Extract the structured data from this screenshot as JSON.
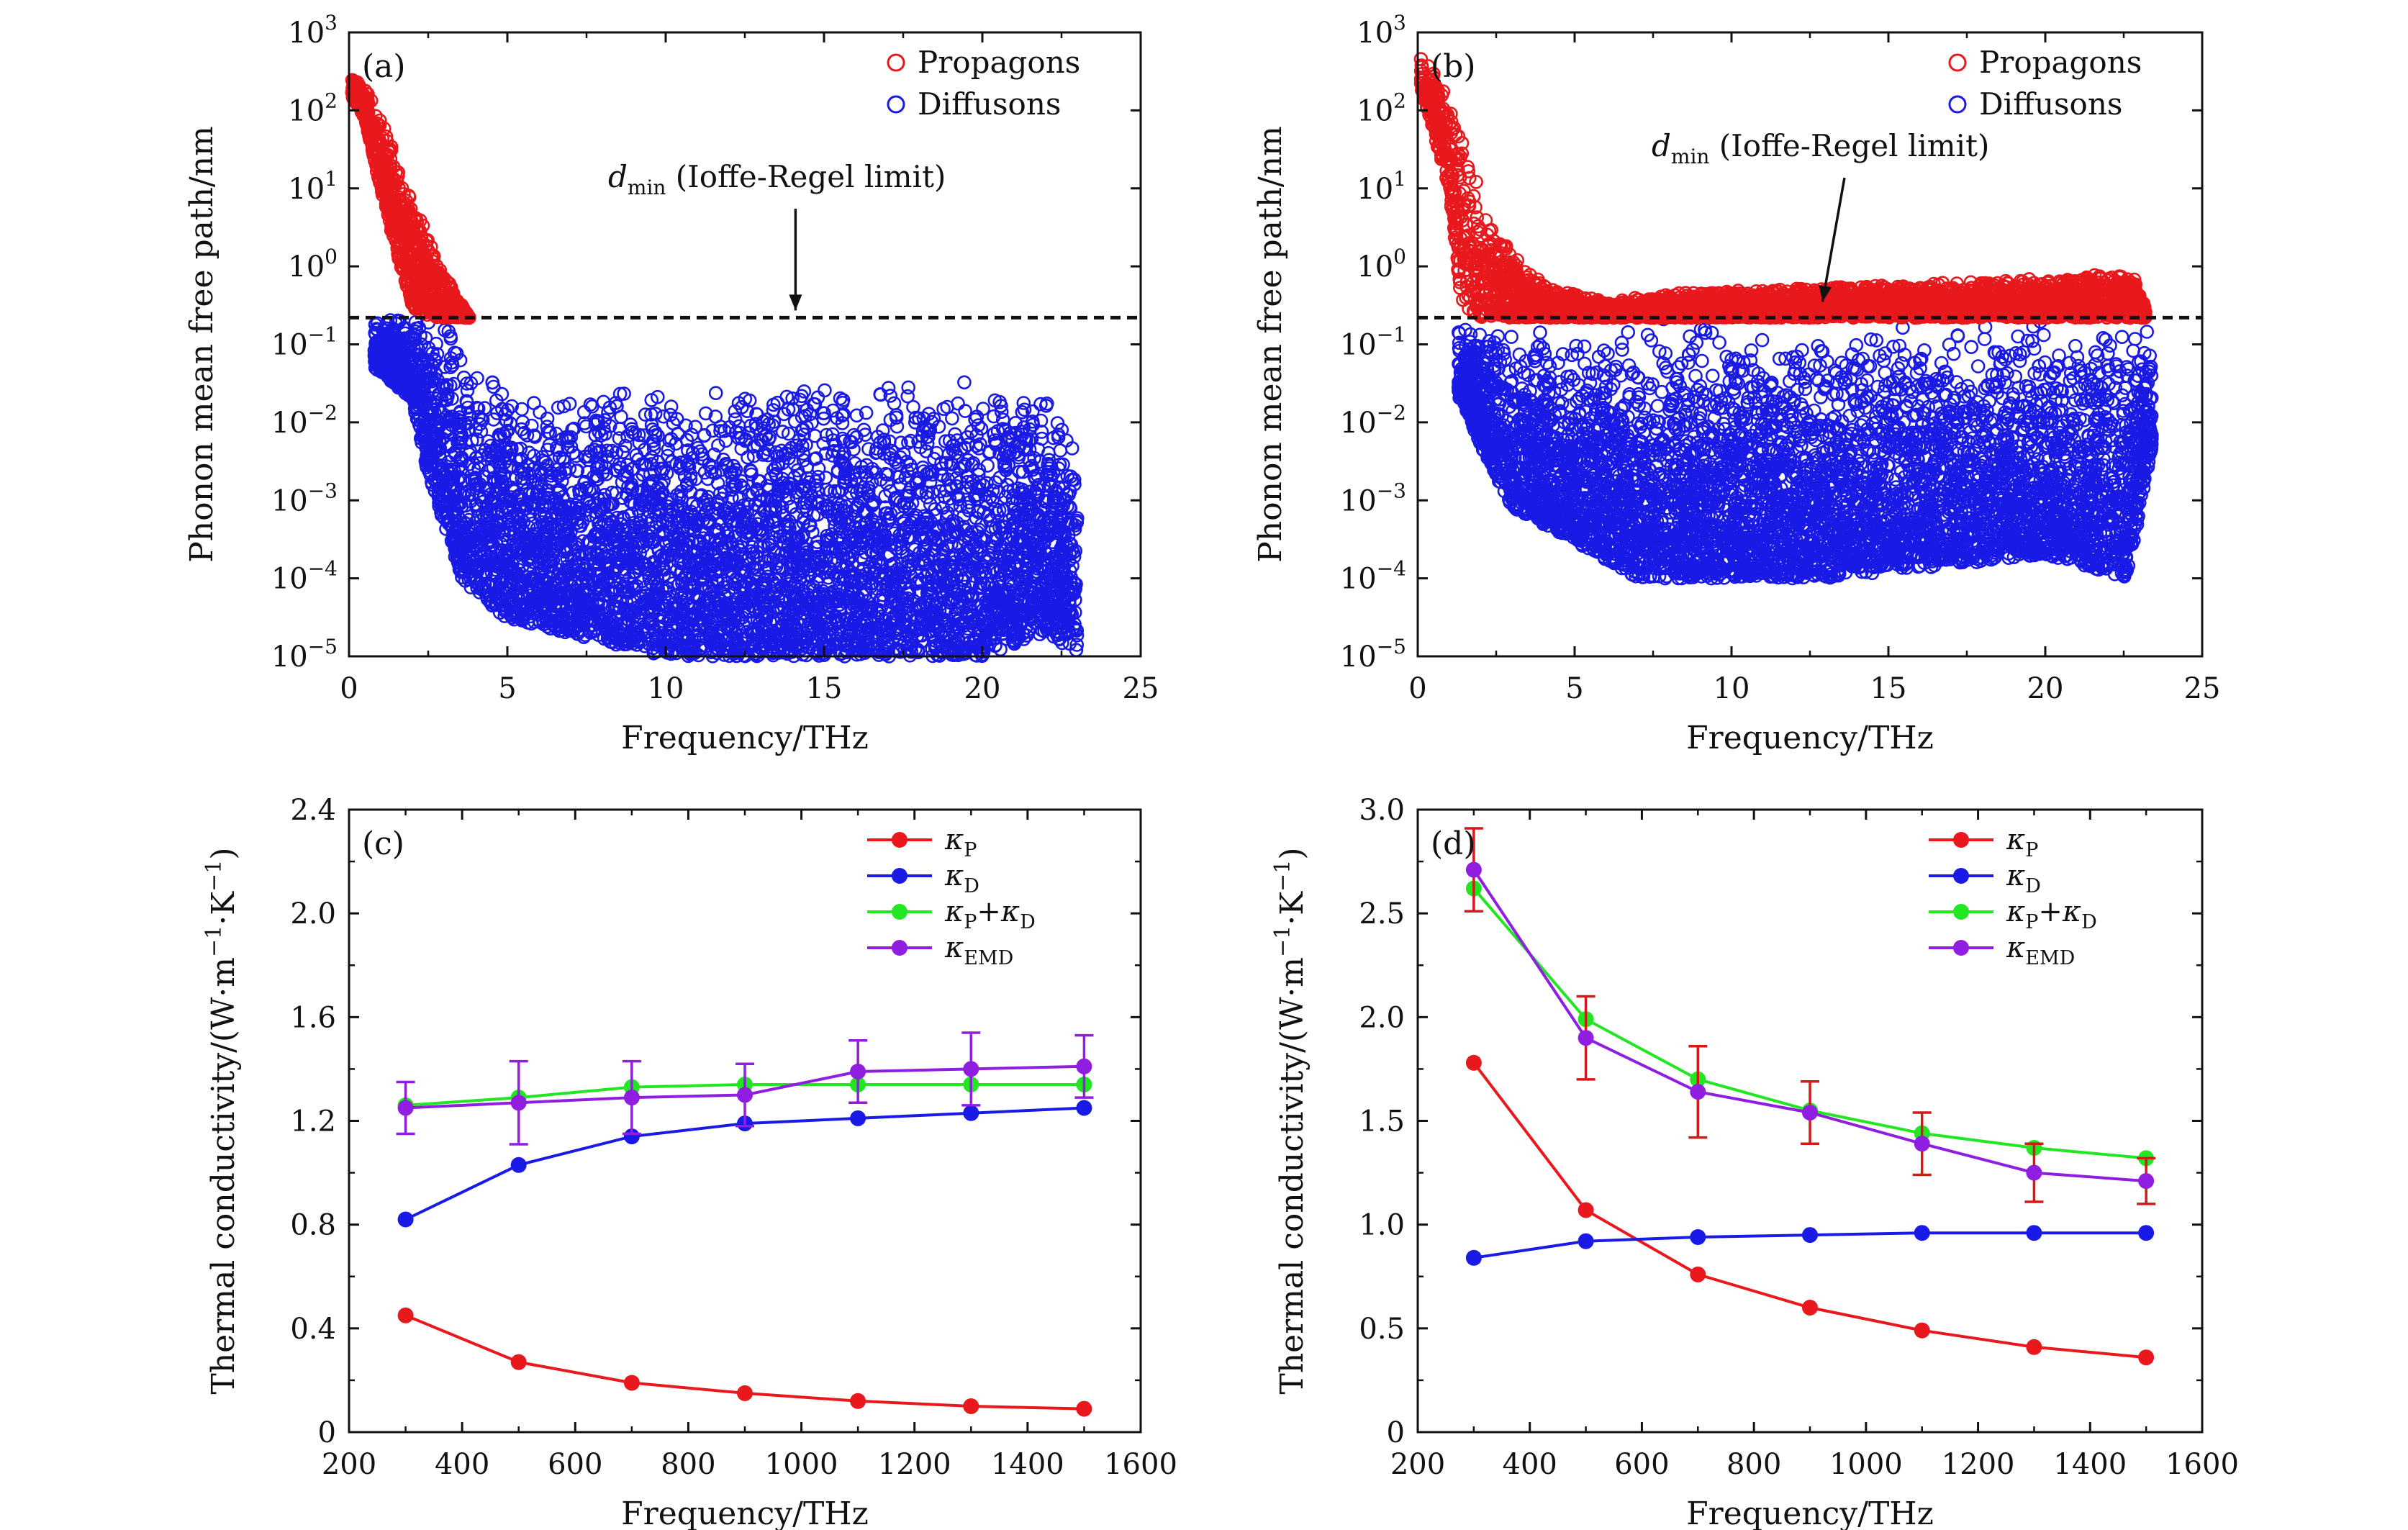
{
  "colors": {
    "propagons": "#e8181c",
    "diffusons": "#1a1ae6",
    "kappa_p": "#e8181c",
    "kappa_d": "#1a1ae6",
    "kappa_sum": "#22e622",
    "kappa_emd": "#8f1ee0",
    "error_bar_c": "#8f1ee0",
    "error_bar_d": "#d21a1a",
    "axis": "#111111"
  },
  "chart_data": [
    {
      "id": "a",
      "type": "scatter",
      "panel_label": "(a)",
      "xlabel": "Frequency/THz",
      "ylabel": "Phonon mean free path/nm",
      "xlim": [
        0,
        25
      ],
      "ylim": [
        1e-05,
        1000
      ],
      "yscale": "log",
      "xticks": [
        "0",
        "5",
        "10",
        "15",
        "20",
        "25"
      ],
      "yticks": [
        {
          "base": "10",
          "exp": "3"
        },
        {
          "base": "10",
          "exp": "2"
        },
        {
          "base": "10",
          "exp": "1"
        },
        {
          "base": "10",
          "exp": "0"
        },
        {
          "base": "10",
          "exp": "−1"
        },
        {
          "base": "10",
          "exp": "−2"
        },
        {
          "base": "10",
          "exp": "−3"
        },
        {
          "base": "10",
          "exp": "−4"
        },
        {
          "base": "10",
          "exp": "−5"
        }
      ],
      "legend": [
        "Propagons",
        "Diffusons"
      ],
      "legend_position": "top-right",
      "annotation": {
        "main": "d",
        "sub": "min",
        "rest": " (Ioffe-Regel limit)"
      },
      "ioffe_regel_limit_nm": 0.22,
      "series": [
        {
          "name": "Propagons",
          "marker": "open-circle",
          "envelope": [
            [
              0.1,
              280
            ],
            [
              0.5,
              200
            ],
            [
              1.0,
              80
            ],
            [
              1.5,
              25
            ],
            [
              2.0,
              8
            ],
            [
              2.5,
              2.5
            ],
            [
              3.0,
              0.8
            ],
            [
              3.5,
              0.35
            ],
            [
              3.8,
              0.22
            ]
          ],
          "lower_envelope": [
            [
              0.1,
              150
            ],
            [
              0.5,
              80
            ],
            [
              1.0,
              10
            ],
            [
              1.5,
              1.5
            ],
            [
              2.0,
              0.3
            ],
            [
              2.5,
              0.22
            ]
          ]
        },
        {
          "name": "Diffusons",
          "marker": "open-circle",
          "upper_envelope": [
            [
              0.8,
              0.22
            ],
            [
              2.0,
              0.22
            ],
            [
              3.0,
              0.2
            ],
            [
              4.0,
              0.08
            ],
            [
              5.0,
              0.035
            ],
            [
              6.0,
              0.02
            ],
            [
              7.0,
              0.025
            ],
            [
              10.0,
              0.03
            ],
            [
              15.0,
              0.03
            ],
            [
              20.0,
              0.035
            ],
            [
              22.0,
              0.025
            ],
            [
              23.0,
              0.005
            ]
          ],
          "lower_envelope": [
            [
              0.8,
              0.05
            ],
            [
              2.0,
              0.02
            ],
            [
              2.5,
              0.002
            ],
            [
              3.0,
              0.0005
            ],
            [
              3.5,
              0.0001
            ],
            [
              5.0,
              3e-05
            ],
            [
              10.0,
              1e-05
            ],
            [
              15.0,
              1e-05
            ],
            [
              20.0,
              1e-05
            ],
            [
              22.0,
              2e-05
            ],
            [
              23.2,
              1e-05
            ]
          ]
        }
      ]
    },
    {
      "id": "b",
      "type": "scatter",
      "panel_label": "(b)",
      "xlabel": "Frequency/THz",
      "ylabel": "Phonon mean free path/nm",
      "xlim": [
        0,
        25
      ],
      "ylim": [
        1e-05,
        1000
      ],
      "yscale": "log",
      "xticks": [
        "0",
        "5",
        "10",
        "15",
        "20",
        "25"
      ],
      "yticks": [
        {
          "base": "10",
          "exp": "3"
        },
        {
          "base": "10",
          "exp": "2"
        },
        {
          "base": "10",
          "exp": "1"
        },
        {
          "base": "10",
          "exp": "0"
        },
        {
          "base": "10",
          "exp": "−1"
        },
        {
          "base": "10",
          "exp": "−2"
        },
        {
          "base": "10",
          "exp": "−3"
        },
        {
          "base": "10",
          "exp": "−4"
        },
        {
          "base": "10",
          "exp": "−5"
        }
      ],
      "legend": [
        "Propagons",
        "Diffusons"
      ],
      "legend_position": "top-right",
      "annotation": {
        "main": "d",
        "sub": "min",
        "rest": " (Ioffe-Regel limit)"
      },
      "ioffe_regel_limit_nm": 0.22,
      "series": [
        {
          "name": "Propagons",
          "marker": "open-circle",
          "envelope": [
            [
              0.1,
              500
            ],
            [
              0.5,
              350
            ],
            [
              1.0,
              150
            ],
            [
              1.5,
              40
            ],
            [
              2.0,
              10
            ],
            [
              2.5,
              3
            ],
            [
              3.0,
              1.5
            ],
            [
              4.0,
              0.6
            ],
            [
              6.0,
              0.35
            ],
            [
              8.0,
              0.45
            ],
            [
              10.0,
              0.5
            ],
            [
              15.0,
              0.6
            ],
            [
              20.0,
              0.7
            ],
            [
              22.8,
              0.9
            ],
            [
              23.2,
              0.3
            ]
          ],
          "lower_envelope": [
            [
              0.1,
              200
            ],
            [
              1.0,
              10
            ],
            [
              1.4,
              0.3
            ],
            [
              2.0,
              0.22
            ],
            [
              23.2,
              0.22
            ]
          ]
        },
        {
          "name": "Diffusons",
          "marker": "open-circle",
          "upper_envelope": [
            [
              1.3,
              0.22
            ],
            [
              23.4,
              0.22
            ]
          ],
          "lower_envelope": [
            [
              1.4,
              0.02
            ],
            [
              2.0,
              0.005
            ],
            [
              3.0,
              0.0008
            ],
            [
              5.0,
              0.0003
            ],
            [
              7.0,
              0.0001
            ],
            [
              9.0,
              0.0001
            ],
            [
              13.0,
              0.0001
            ],
            [
              20.0,
              0.0002
            ],
            [
              22.6,
              0.0001
            ],
            [
              23.4,
              0.005
            ]
          ]
        }
      ]
    },
    {
      "id": "c",
      "type": "line",
      "panel_label": "(c)",
      "xlabel": "Frequency/THz",
      "ylabel": "Thermal conductivity/(W·m",
      "ylabel_unit_parts": [
        "−1",
        "·K",
        "−1",
        ")"
      ],
      "xlim": [
        200,
        1600
      ],
      "ylim": [
        0,
        2.4
      ],
      "xticks": [
        "200",
        "400",
        "600",
        "800",
        "1000",
        "1200",
        "1400",
        "1600"
      ],
      "yticks": [
        "0",
        "0.4",
        "0.8",
        "1.2",
        "1.6",
        "2.0",
        "2.4"
      ],
      "x": [
        300,
        500,
        700,
        900,
        1100,
        1300,
        1500
      ],
      "legend_position": "top-right",
      "series": [
        {
          "name": "κP",
          "legend_label": {
            "main": "κ",
            "sub": "P"
          },
          "values": [
            0.45,
            0.27,
            0.19,
            0.15,
            0.12,
            0.1,
            0.09
          ]
        },
        {
          "name": "κD",
          "legend_label": {
            "main": "κ",
            "sub": "D"
          },
          "values": [
            0.82,
            1.03,
            1.14,
            1.19,
            1.21,
            1.23,
            1.25
          ]
        },
        {
          "name": "κP+κD",
          "legend_label": {
            "main": "κ",
            "sub": "P",
            "plus": "+κ",
            "sub2": "D"
          },
          "values": [
            1.26,
            1.29,
            1.33,
            1.34,
            1.34,
            1.34,
            1.34
          ]
        },
        {
          "name": "κEMD",
          "legend_label": {
            "main": "κ",
            "sub": "EMD"
          },
          "values": [
            1.25,
            1.27,
            1.29,
            1.3,
            1.39,
            1.4,
            1.41
          ],
          "error": [
            0.1,
            0.16,
            0.14,
            0.12,
            0.12,
            0.14,
            0.12
          ]
        }
      ]
    },
    {
      "id": "d",
      "type": "line",
      "panel_label": "(d)",
      "xlabel": "Frequency/THz",
      "ylabel": "Thermal conductivity/(W·m",
      "ylabel_unit_parts": [
        "−1",
        "·K",
        "−1",
        ")"
      ],
      "xlim": [
        200,
        1600
      ],
      "ylim": [
        0,
        3.0
      ],
      "xticks": [
        "200",
        "400",
        "600",
        "800",
        "1000",
        "1200",
        "1400",
        "1600"
      ],
      "yticks": [
        "0",
        "0.5",
        "1.0",
        "1.5",
        "2.0",
        "2.5",
        "3.0"
      ],
      "x": [
        300,
        500,
        700,
        900,
        1100,
        1300,
        1500
      ],
      "legend_position": "top-right",
      "series": [
        {
          "name": "κP",
          "legend_label": {
            "main": "κ",
            "sub": "P"
          },
          "values": [
            1.78,
            1.07,
            0.76,
            0.6,
            0.49,
            0.41,
            0.36
          ]
        },
        {
          "name": "κD",
          "legend_label": {
            "main": "κ",
            "sub": "D"
          },
          "values": [
            0.84,
            0.92,
            0.94,
            0.95,
            0.96,
            0.96,
            0.96
          ]
        },
        {
          "name": "κP+κD",
          "legend_label": {
            "main": "κ",
            "sub": "P",
            "plus": "+κ",
            "sub2": "D"
          },
          "values": [
            2.62,
            1.99,
            1.7,
            1.55,
            1.44,
            1.37,
            1.32
          ]
        },
        {
          "name": "κEMD",
          "legend_label": {
            "main": "κ",
            "sub": "EMD"
          },
          "values": [
            2.71,
            1.9,
            1.64,
            1.54,
            1.39,
            1.25,
            1.21
          ],
          "error": [
            0.2,
            0.2,
            0.22,
            0.15,
            0.15,
            0.14,
            0.11
          ]
        }
      ]
    }
  ]
}
